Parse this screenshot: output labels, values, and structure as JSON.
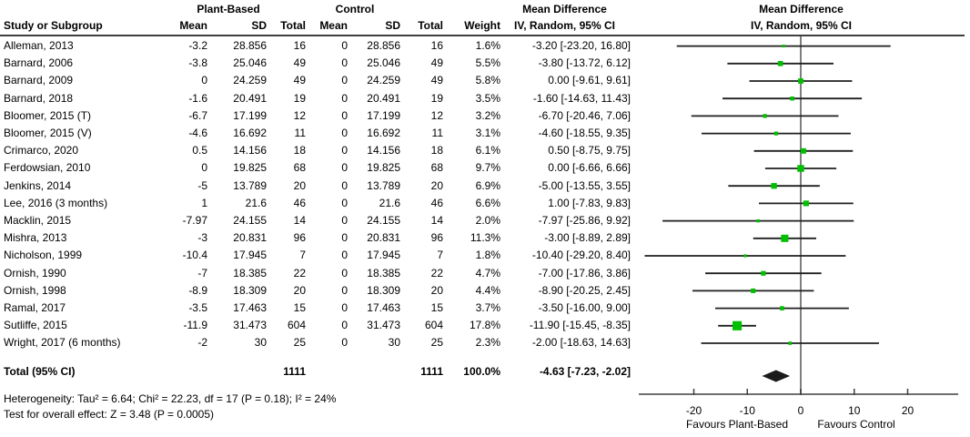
{
  "header": {
    "group1": "Plant-Based",
    "group2": "Control",
    "study_col": "Study or Subgroup",
    "mean1": "Mean",
    "sd1": "SD",
    "total1": "Total",
    "mean2": "Mean",
    "sd2": "SD",
    "total2": "Total",
    "weight": "Weight",
    "md_line1": "Mean Difference",
    "md_line2": "IV, Random, 95% CI",
    "plot_line1": "Mean Difference",
    "plot_line2": "IV, Random, 95% CI"
  },
  "studies": [
    {
      "name": "Alleman, 2013",
      "mean": "-3.2",
      "sd": "28.856",
      "total": "16",
      "c_mean": "0",
      "c_sd": "28.856",
      "c_total": "16",
      "weight": "1.6%",
      "ci": "-3.20 [-23.20, 16.80]"
    },
    {
      "name": "Barnard, 2006",
      "mean": "-3.8",
      "sd": "25.046",
      "total": "49",
      "c_mean": "0",
      "c_sd": "25.046",
      "c_total": "49",
      "weight": "5.5%",
      "ci": "-3.80 [-13.72, 6.12]"
    },
    {
      "name": "Barnard, 2009",
      "mean": "0",
      "sd": "24.259",
      "total": "49",
      "c_mean": "0",
      "c_sd": "24.259",
      "c_total": "49",
      "weight": "5.8%",
      "ci": "0.00 [-9.61, 9.61]"
    },
    {
      "name": "Barnard, 2018",
      "mean": "-1.6",
      "sd": "20.491",
      "total": "19",
      "c_mean": "0",
      "c_sd": "20.491",
      "c_total": "19",
      "weight": "3.5%",
      "ci": "-1.60 [-14.63, 11.43]"
    },
    {
      "name": "Bloomer, 2015 (T)",
      "mean": "-6.7",
      "sd": "17.199",
      "total": "12",
      "c_mean": "0",
      "c_sd": "17.199",
      "c_total": "12",
      "weight": "3.2%",
      "ci": "-6.70 [-20.46, 7.06]"
    },
    {
      "name": "Bloomer, 2015 (V)",
      "mean": "-4.6",
      "sd": "16.692",
      "total": "11",
      "c_mean": "0",
      "c_sd": "16.692",
      "c_total": "11",
      "weight": "3.1%",
      "ci": "-4.60 [-18.55, 9.35]"
    },
    {
      "name": "Crimarco, 2020",
      "mean": "0.5",
      "sd": "14.156",
      "total": "18",
      "c_mean": "0",
      "c_sd": "14.156",
      "c_total": "18",
      "weight": "6.1%",
      "ci": "0.50 [-8.75, 9.75]"
    },
    {
      "name": "Ferdowsian, 2010",
      "mean": "0",
      "sd": "19.825",
      "total": "68",
      "c_mean": "0",
      "c_sd": "19.825",
      "c_total": "68",
      "weight": "9.7%",
      "ci": "0.00 [-6.66, 6.66]"
    },
    {
      "name": "Jenkins, 2014",
      "mean": "-5",
      "sd": "13.789",
      "total": "20",
      "c_mean": "0",
      "c_sd": "13.789",
      "c_total": "20",
      "weight": "6.9%",
      "ci": "-5.00 [-13.55, 3.55]"
    },
    {
      "name": "Lee, 2016 (3 months)",
      "mean": "1",
      "sd": "21.6",
      "total": "46",
      "c_mean": "0",
      "c_sd": "21.6",
      "c_total": "46",
      "weight": "6.6%",
      "ci": "1.00 [-7.83, 9.83]"
    },
    {
      "name": "Macklin, 2015",
      "mean": "-7.97",
      "sd": "24.155",
      "total": "14",
      "c_mean": "0",
      "c_sd": "24.155",
      "c_total": "14",
      "weight": "2.0%",
      "ci": "-7.97 [-25.86, 9.92]"
    },
    {
      "name": "Mishra, 2013",
      "mean": "-3",
      "sd": "20.831",
      "total": "96",
      "c_mean": "0",
      "c_sd": "20.831",
      "c_total": "96",
      "weight": "11.3%",
      "ci": "-3.00 [-8.89, 2.89]"
    },
    {
      "name": "Nicholson, 1999",
      "mean": "-10.4",
      "sd": "17.945",
      "total": "7",
      "c_mean": "0",
      "c_sd": "17.945",
      "c_total": "7",
      "weight": "1.8%",
      "ci": "-10.40 [-29.20, 8.40]"
    },
    {
      "name": "Ornish, 1990",
      "mean": "-7",
      "sd": "18.385",
      "total": "22",
      "c_mean": "0",
      "c_sd": "18.385",
      "c_total": "22",
      "weight": "4.7%",
      "ci": "-7.00 [-17.86, 3.86]"
    },
    {
      "name": "Ornish, 1998",
      "mean": "-8.9",
      "sd": "18.309",
      "total": "20",
      "c_mean": "0",
      "c_sd": "18.309",
      "c_total": "20",
      "weight": "4.4%",
      "ci": "-8.90 [-20.25, 2.45]"
    },
    {
      "name": "Ramal, 2017",
      "mean": "-3.5",
      "sd": "17.463",
      "total": "15",
      "c_mean": "0",
      "c_sd": "17.463",
      "c_total": "15",
      "weight": "3.7%",
      "ci": "-3.50 [-16.00, 9.00]"
    },
    {
      "name": "Sutliffe, 2015",
      "mean": "-11.9",
      "sd": "31.473",
      "total": "604",
      "c_mean": "0",
      "c_sd": "31.473",
      "c_total": "604",
      "weight": "17.8%",
      "ci": "-11.90 [-15.45, -8.35]"
    },
    {
      "name": "Wright, 2017 (6 months)",
      "mean": "-2",
      "sd": "30",
      "total": "25",
      "c_mean": "0",
      "c_sd": "30",
      "c_total": "25",
      "weight": "2.3%",
      "ci": "-2.00 [-18.63, 14.63]"
    }
  ],
  "total_row": {
    "label": "Total (95% CI)",
    "total": "1111",
    "c_total": "1111",
    "weight": "100.0%",
    "ci": "-4.63 [-7.23, -2.02]"
  },
  "footer": {
    "heterogeneity": "Heterogeneity: Tau² = 6.64; Chi² = 22.23, df = 17 (P = 0.18); I² = 24%",
    "overall": "Test for overall effect: Z = 3.48 (P = 0.0005)"
  },
  "axis": {
    "tick_labels": [
      "-20",
      "-10",
      "0",
      "10",
      "20"
    ],
    "favours_left": "Favours Plant-Based",
    "favours_right": "Favours Control"
  },
  "colors": {
    "marker_green": "#00bf00",
    "diamond_black": "#1a1a1a",
    "zero_line_gray": "#7f7f7f",
    "axis_dark": "#3f3f3f",
    "ci_line": "#1f1f1f"
  },
  "chart_data": {
    "type": "forest",
    "title": "Mean Difference  IV, Random, 95% CI",
    "effect_measure": "Mean Difference (IV, Random, 95% CI)",
    "x_ticks": [
      -20,
      -10,
      0,
      10,
      20
    ],
    "xlim": [
      -30,
      30
    ],
    "favours": {
      "left": "Favours Plant-Based",
      "right": "Favours Control"
    },
    "studies": [
      {
        "name": "Alleman, 2013",
        "est": -3.2,
        "lo": -23.2,
        "hi": 16.8,
        "weight_pct": 1.6
      },
      {
        "name": "Barnard, 2006",
        "est": -3.8,
        "lo": -13.72,
        "hi": 6.12,
        "weight_pct": 5.5
      },
      {
        "name": "Barnard, 2009",
        "est": 0.0,
        "lo": -9.61,
        "hi": 9.61,
        "weight_pct": 5.8
      },
      {
        "name": "Barnard, 2018",
        "est": -1.6,
        "lo": -14.63,
        "hi": 11.43,
        "weight_pct": 3.5
      },
      {
        "name": "Bloomer, 2015 (T)",
        "est": -6.7,
        "lo": -20.46,
        "hi": 7.06,
        "weight_pct": 3.2
      },
      {
        "name": "Bloomer, 2015 (V)",
        "est": -4.6,
        "lo": -18.55,
        "hi": 9.35,
        "weight_pct": 3.1
      },
      {
        "name": "Crimarco, 2020",
        "est": 0.5,
        "lo": -8.75,
        "hi": 9.75,
        "weight_pct": 6.1
      },
      {
        "name": "Ferdowsian, 2010",
        "est": 0.0,
        "lo": -6.66,
        "hi": 6.66,
        "weight_pct": 9.7
      },
      {
        "name": "Jenkins, 2014",
        "est": -5.0,
        "lo": -13.55,
        "hi": 3.55,
        "weight_pct": 6.9
      },
      {
        "name": "Lee, 2016 (3 months)",
        "est": 1.0,
        "lo": -7.83,
        "hi": 9.83,
        "weight_pct": 6.6
      },
      {
        "name": "Macklin, 2015",
        "est": -7.97,
        "lo": -25.86,
        "hi": 9.92,
        "weight_pct": 2.0
      },
      {
        "name": "Mishra, 2013",
        "est": -3.0,
        "lo": -8.89,
        "hi": 2.89,
        "weight_pct": 11.3
      },
      {
        "name": "Nicholson, 1999",
        "est": -10.4,
        "lo": -29.2,
        "hi": 8.4,
        "weight_pct": 1.8
      },
      {
        "name": "Ornish, 1990",
        "est": -7.0,
        "lo": -17.86,
        "hi": 3.86,
        "weight_pct": 4.7
      },
      {
        "name": "Ornish, 1998",
        "est": -8.9,
        "lo": -20.25,
        "hi": 2.45,
        "weight_pct": 4.4
      },
      {
        "name": "Ramal, 2017",
        "est": -3.5,
        "lo": -16.0,
        "hi": 9.0,
        "weight_pct": 3.7
      },
      {
        "name": "Sutliffe, 2015",
        "est": -11.9,
        "lo": -15.45,
        "hi": -8.35,
        "weight_pct": 17.8
      },
      {
        "name": "Wright, 2017 (6 months)",
        "est": -2.0,
        "lo": -18.63,
        "hi": 14.63,
        "weight_pct": 2.3
      }
    ],
    "total": {
      "label": "Total (95% CI)",
      "est": -4.63,
      "lo": -7.23,
      "hi": -2.02,
      "n_plant_based": 1111,
      "n_control": 1111,
      "weight_pct": 100.0
    },
    "heterogeneity": {
      "tau2": 6.64,
      "chi2": 22.23,
      "df": 17,
      "p": 0.18,
      "i2_pct": 24
    },
    "overall_effect": {
      "z": 3.48,
      "p": 0.0005
    }
  }
}
